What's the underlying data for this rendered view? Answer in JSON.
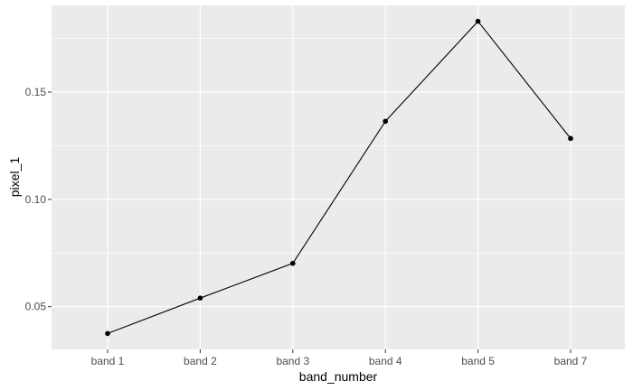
{
  "chart_data": {
    "type": "line",
    "categories": [
      "band 1",
      "band 2",
      "band 3",
      "band 4",
      "band 5",
      "band 7"
    ],
    "series": [
      {
        "values": [
          0.0375,
          0.054,
          0.0702,
          0.1364,
          0.183,
          0.1284
        ]
      }
    ],
    "xlabel": "band_number",
    "ylabel": "pixel_1",
    "ylim": [
      0.0301,
      0.1904
    ],
    "yticks": [
      0.05,
      0.1,
      0.15
    ],
    "ytick_labels": [
      "0.05",
      "0.10",
      "0.15"
    ],
    "grid": true,
    "legend": "none",
    "colors": {
      "panel": "#ebebeb",
      "grid": "#ffffff",
      "line": "#000000",
      "point": "#000000",
      "tick_text": "#4d4d4d"
    }
  }
}
